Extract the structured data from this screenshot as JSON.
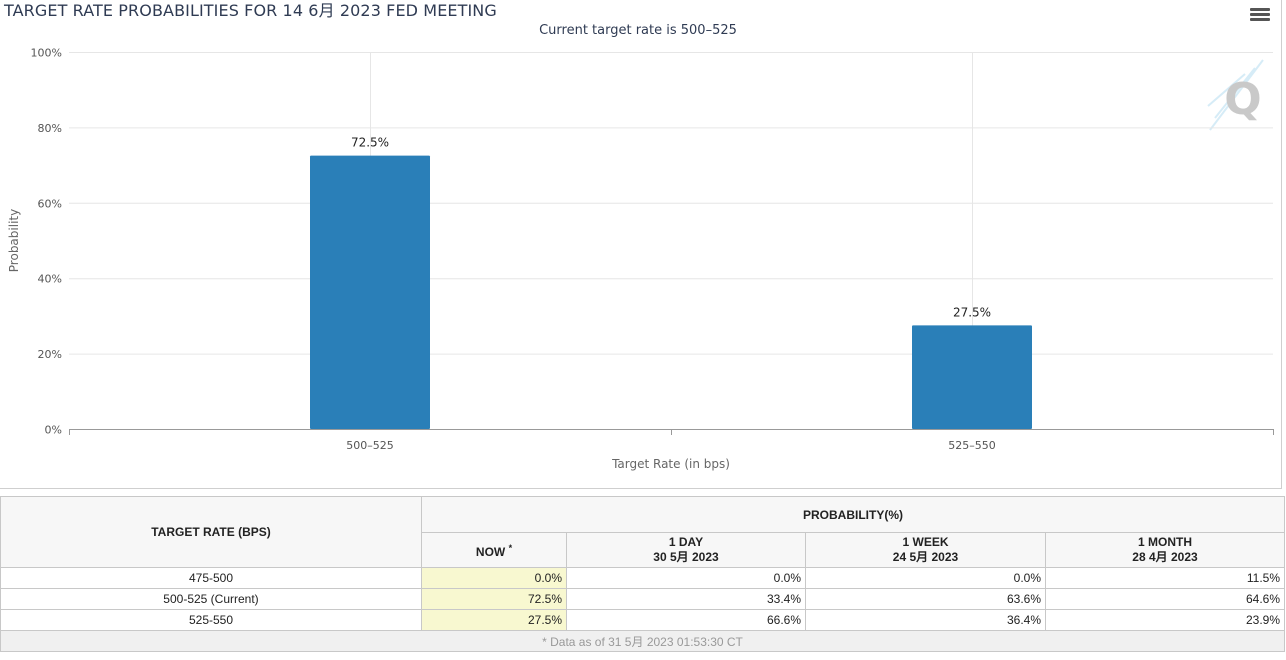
{
  "chart": {
    "title": "TARGET RATE PROBABILITIES FOR 14 6月 2023 FED MEETING",
    "subtitle": "Current target rate is 500–525"
  },
  "chart_data": {
    "type": "bar",
    "title": "TARGET RATE PROBABILITIES FOR 14 6月 2023 FED MEETING",
    "subtitle": "Current target rate is 500–525",
    "categories": [
      "500–525",
      "525–550"
    ],
    "values": [
      72.5,
      27.5
    ],
    "data_labels": [
      "72.5%",
      "27.5%"
    ],
    "xlabel": "Target Rate (in bps)",
    "ylabel": "Probability",
    "ylim": [
      0,
      100
    ],
    "yticks": [
      0,
      20,
      40,
      60,
      80,
      100
    ],
    "ytick_labels": [
      "0%",
      "20%",
      "40%",
      "60%",
      "80%",
      "100%"
    ],
    "grid": true,
    "bar_color": "#2a7fb8"
  },
  "table": {
    "target_header": "TARGET RATE (BPS)",
    "probability_header": "PROBABILITY(%)",
    "now_label": "NOW",
    "now_marker": "*",
    "columns": [
      {
        "label": "1 DAY",
        "date": "30 5月 2023"
      },
      {
        "label": "1 WEEK",
        "date": "24 5月 2023"
      },
      {
        "label": "1 MONTH",
        "date": "28 4月 2023"
      }
    ],
    "rows": [
      {
        "rate": "475-500",
        "now": "0.0%",
        "day": "0.0%",
        "week": "0.0%",
        "month": "11.5%"
      },
      {
        "rate": "500-525 (Current)",
        "now": "72.5%",
        "day": "33.4%",
        "week": "63.6%",
        "month": "64.6%"
      },
      {
        "rate": "525-550",
        "now": "27.5%",
        "day": "66.6%",
        "week": "36.4%",
        "month": "23.9%"
      }
    ],
    "footnote": "* Data as of 31 5月 2023 01:53:30 CT"
  }
}
